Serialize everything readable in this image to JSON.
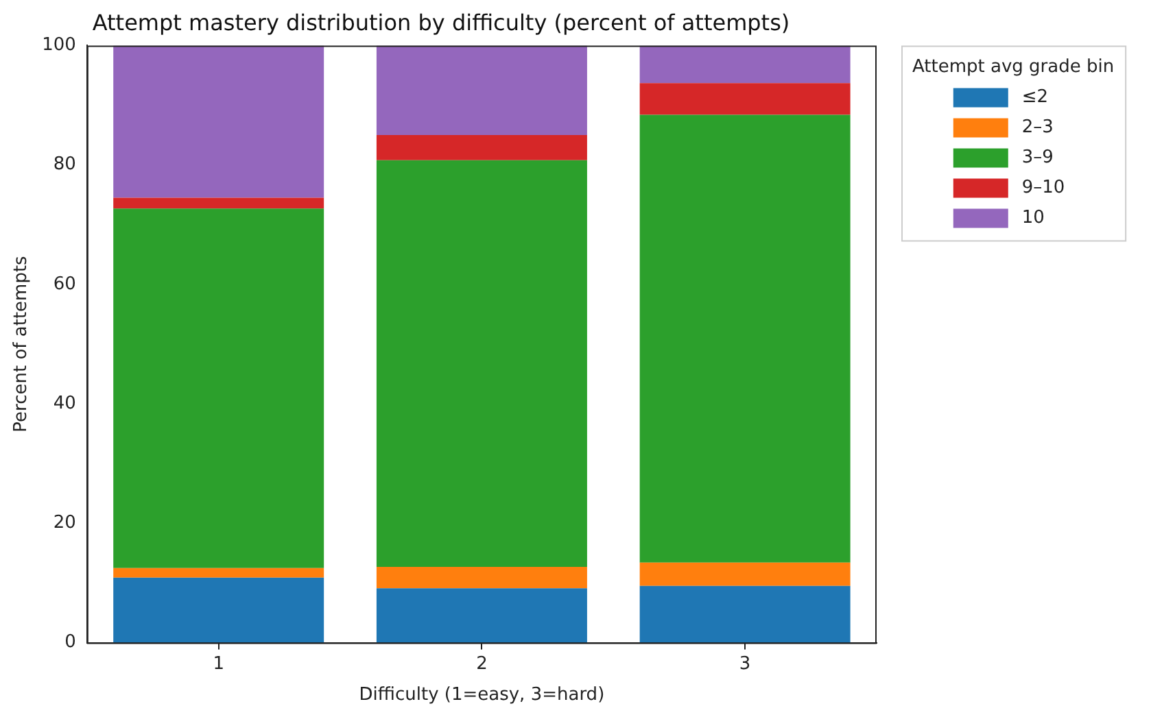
{
  "chart_data": {
    "type": "bar",
    "stacked": true,
    "title": "Attempt mastery distribution by difficulty (percent of attempts)",
    "xlabel": "Difficulty (1=easy, 3=hard)",
    "ylabel": "Percent of attempts",
    "legend_title": "Attempt avg grade bin",
    "categories": [
      "1",
      "2",
      "3"
    ],
    "series": [
      {
        "name": "≤2",
        "color": "#1f77b4",
        "values": [
          10.9,
          9.1,
          9.5
        ]
      },
      {
        "name": "2–3",
        "color": "#ff7f0e",
        "values": [
          1.6,
          3.6,
          3.9
        ]
      },
      {
        "name": "3–9",
        "color": "#2ca02c",
        "values": [
          60.2,
          68.1,
          75.0
        ]
      },
      {
        "name": "9–10",
        "color": "#d62728",
        "values": [
          1.8,
          4.2,
          5.3
        ]
      },
      {
        "name": "10",
        "color": "#9467bd",
        "values": [
          25.5,
          15.0,
          6.3
        ]
      }
    ],
    "ylim": [
      0,
      100
    ],
    "yticks": [
      0,
      20,
      40,
      60,
      80,
      100
    ],
    "grid": false,
    "legend": "top right"
  }
}
